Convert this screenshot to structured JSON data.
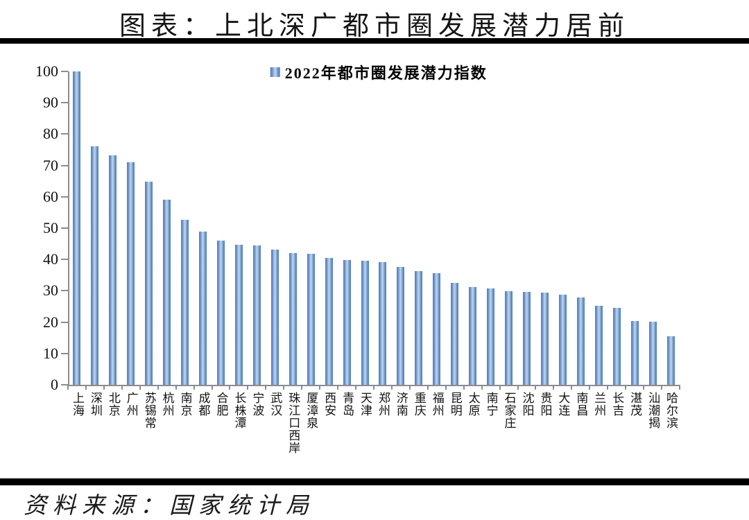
{
  "page": {
    "title": "图表：上北深广都市圈发展潜力居前",
    "source": "资料来源：国家统计局"
  },
  "chart_data": {
    "type": "bar",
    "title": "图表：上北深广都市圈发展潜力居前",
    "legend": "2022年都市圈发展潜力指数",
    "legend_position": "top-center",
    "grid": false,
    "ylim": [
      0,
      100
    ],
    "ytick_step": 10,
    "ylabel": "",
    "xlabel": "",
    "bar_color_edge": "#4f81bd",
    "bar_color_center": "#c3d4ec",
    "axis_color": "#8c8c8c",
    "categories": [
      "上海",
      "深圳",
      "北京",
      "广州",
      "苏锡常",
      "杭州",
      "南京",
      "成都",
      "合肥",
      "长株潭",
      "宁波",
      "武汉",
      "珠江口西岸",
      "厦漳泉",
      "西安",
      "青岛",
      "天津",
      "郑州",
      "济南",
      "重庆",
      "福州",
      "昆明",
      "太原",
      "南宁",
      "石家庄",
      "沈阳",
      "贵阳",
      "大连",
      "南昌",
      "兰州",
      "长吉",
      "湛茂",
      "汕潮揭",
      "哈尔滨"
    ],
    "values": [
      100,
      76,
      73.3,
      71,
      64.8,
      59,
      52.6,
      49,
      46,
      44.7,
      44.4,
      43.2,
      42,
      41.8,
      40.4,
      39.9,
      39.6,
      39.1,
      37.7,
      36.2,
      35.7,
      32.6,
      31.2,
      30.7,
      29.8,
      29.7,
      29.4,
      28.7,
      27.8,
      25.3,
      24.5,
      20.3,
      20.2,
      15.5
    ]
  }
}
